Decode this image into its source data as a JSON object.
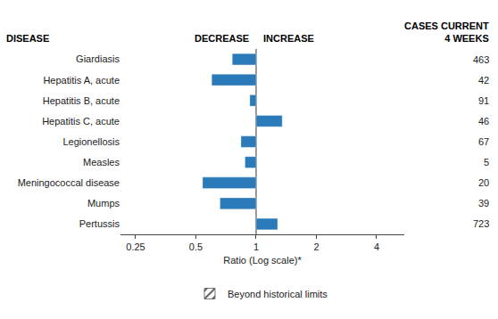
{
  "chart_data": {
    "type": "bar",
    "orientation": "horizontal",
    "categories": [
      "Giardiasis",
      "Hepatitis A, acute",
      "Hepatitis B, acute",
      "Hepatitis C, acute",
      "Legionellosis",
      "Measles",
      "Meningococcal disease",
      "Mumps",
      "Pertussis"
    ],
    "low": [
      0.76,
      0.6,
      0.93,
      1.0,
      0.84,
      0.88,
      0.54,
      0.66,
      1.0
    ],
    "high": [
      1.0,
      1.0,
      1.0,
      1.35,
      1.0,
      1.0,
      1.0,
      1.0,
      1.28
    ],
    "cases": [
      463,
      42,
      91,
      46,
      67,
      5,
      20,
      39,
      723
    ],
    "color": "#2b7bba",
    "xlabel": "Ratio (Log scale)*",
    "xlim": [
      0.21,
      5.5
    ],
    "xticks": [
      0.25,
      0.5,
      1,
      2,
      4
    ],
    "log": "x",
    "grid": false,
    "reference_x": 1,
    "annotations": [
      "DISEASE",
      "DECREASE",
      "INCREASE",
      "CASES CURRENT",
      "4 WEEKS"
    ],
    "legend_label": "Beyond historical limits",
    "legend": "bottom"
  }
}
